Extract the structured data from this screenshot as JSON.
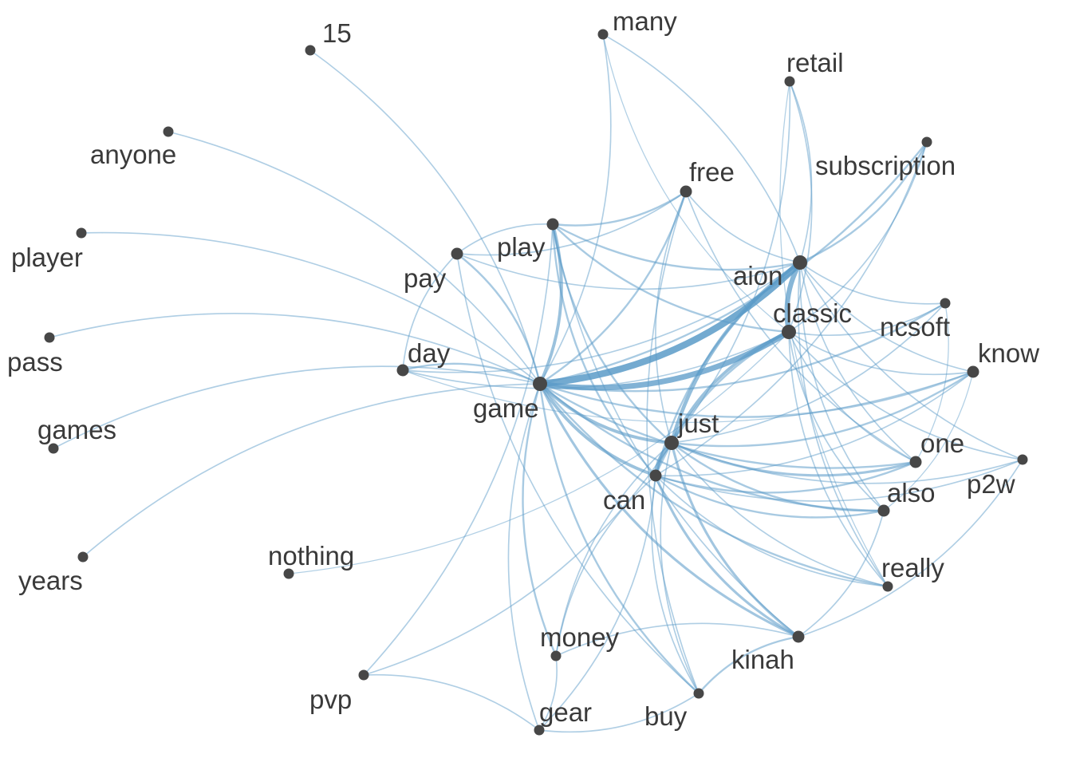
{
  "graph": {
    "type": "word-cooccurrence network",
    "edge_color": "#5b9bc8",
    "node_color": "#474747",
    "label_color": "#3a3a3a",
    "nodes": [
      {
        "id": "game",
        "label": "game",
        "size": "large"
      },
      {
        "id": "aion",
        "label": "aion",
        "size": "large"
      },
      {
        "id": "classic",
        "label": "classic",
        "size": "large"
      },
      {
        "id": "just",
        "label": "just",
        "size": "large"
      },
      {
        "id": "can",
        "label": "can",
        "size": "medium"
      },
      {
        "id": "play",
        "label": "play",
        "size": "medium"
      },
      {
        "id": "day",
        "label": "day",
        "size": "medium"
      },
      {
        "id": "pay",
        "label": "pay",
        "size": "medium"
      },
      {
        "id": "free",
        "label": "free",
        "size": "medium"
      },
      {
        "id": "one",
        "label": "one",
        "size": "medium"
      },
      {
        "id": "also",
        "label": "also",
        "size": "medium"
      },
      {
        "id": "kinah",
        "label": "kinah",
        "size": "medium"
      },
      {
        "id": "know",
        "label": "know",
        "size": "medium"
      },
      {
        "id": "ncsoft",
        "label": "ncsoft",
        "size": "small"
      },
      {
        "id": "p2w",
        "label": "p2w",
        "size": "small"
      },
      {
        "id": "really",
        "label": "really",
        "size": "small"
      },
      {
        "id": "money",
        "label": "money",
        "size": "small"
      },
      {
        "id": "buy",
        "label": "buy",
        "size": "small"
      },
      {
        "id": "gear",
        "label": "gear",
        "size": "small"
      },
      {
        "id": "pvp",
        "label": "pvp",
        "size": "small"
      },
      {
        "id": "subscription",
        "label": "subscription",
        "size": "small"
      },
      {
        "id": "retail",
        "label": "retail",
        "size": "small"
      },
      {
        "id": "many",
        "label": "many",
        "size": "small"
      },
      {
        "id": "15",
        "label": "15",
        "size": "small"
      },
      {
        "id": "anyone",
        "label": "anyone",
        "size": "small"
      },
      {
        "id": "player",
        "label": "player",
        "size": "small"
      },
      {
        "id": "pass",
        "label": "pass",
        "size": "small"
      },
      {
        "id": "games",
        "label": "games",
        "size": "small"
      },
      {
        "id": "years",
        "label": "years",
        "size": "small"
      },
      {
        "id": "nothing",
        "label": "nothing",
        "size": "small"
      }
    ],
    "edges": [
      {
        "from": "game",
        "to": "aion",
        "weight": 10
      },
      {
        "from": "game",
        "to": "classic",
        "weight": 8
      },
      {
        "from": "aion",
        "to": "classic",
        "weight": 7
      },
      {
        "from": "just",
        "to": "can",
        "weight": 6
      },
      {
        "from": "aion",
        "to": "just",
        "weight": 5
      },
      {
        "from": "classic",
        "to": "just",
        "weight": 4
      },
      {
        "from": "game",
        "to": "just",
        "weight": 4
      },
      {
        "from": "game",
        "to": "can",
        "weight": 4
      },
      {
        "from": "game",
        "to": "play",
        "weight": 4
      },
      {
        "from": "game",
        "to": "kinah",
        "weight": 3
      },
      {
        "from": "just",
        "to": "kinah",
        "weight": 3
      },
      {
        "from": "can",
        "to": "kinah",
        "weight": 3
      },
      {
        "from": "just",
        "to": "one",
        "weight": 3
      },
      {
        "from": "just",
        "to": "also",
        "weight": 2
      },
      {
        "from": "can",
        "to": "one",
        "weight": 2
      },
      {
        "from": "can",
        "to": "also",
        "weight": 2
      },
      {
        "from": "game",
        "to": "one",
        "weight": 2
      },
      {
        "from": "game",
        "to": "also",
        "weight": 2
      },
      {
        "from": "game",
        "to": "free",
        "weight": 2
      },
      {
        "from": "game",
        "to": "day",
        "weight": 2
      },
      {
        "from": "game",
        "to": "pay",
        "weight": 2
      },
      {
        "from": "game",
        "to": "money",
        "weight": 2
      },
      {
        "from": "game",
        "to": "gear",
        "weight": 1
      },
      {
        "from": "game",
        "to": "buy",
        "weight": 2
      },
      {
        "from": "game",
        "to": "really",
        "weight": 2
      },
      {
        "from": "game",
        "to": "know",
        "weight": 2
      },
      {
        "from": "game",
        "to": "ncsoft",
        "weight": 2
      },
      {
        "from": "game",
        "to": "subscription",
        "weight": 2
      },
      {
        "from": "game",
        "to": "many",
        "weight": 1
      },
      {
        "from": "game",
        "to": "15",
        "weight": 1
      },
      {
        "from": "game",
        "to": "anyone",
        "weight": 1
      },
      {
        "from": "game",
        "to": "player",
        "weight": 1
      },
      {
        "from": "game",
        "to": "pass",
        "weight": 1
      },
      {
        "from": "game",
        "to": "games",
        "weight": 1
      },
      {
        "from": "game",
        "to": "years",
        "weight": 1
      },
      {
        "from": "play",
        "to": "aion",
        "weight": 2
      },
      {
        "from": "play",
        "to": "free",
        "weight": 2
      },
      {
        "from": "play",
        "to": "classic",
        "weight": 2
      },
      {
        "from": "play",
        "to": "just",
        "weight": 2
      },
      {
        "from": "play",
        "to": "pay",
        "weight": 1
      },
      {
        "from": "play",
        "to": "can",
        "weight": 2
      },
      {
        "from": "play",
        "to": "kinah",
        "weight": 1
      },
      {
        "from": "pay",
        "to": "aion",
        "weight": 1
      },
      {
        "from": "pay",
        "to": "free",
        "weight": 1
      },
      {
        "from": "pay",
        "to": "day",
        "weight": 1
      },
      {
        "from": "pay",
        "to": "buy",
        "weight": 1
      },
      {
        "from": "day",
        "to": "classic",
        "weight": 1
      },
      {
        "from": "day",
        "to": "aion",
        "weight": 1
      },
      {
        "from": "free",
        "to": "aion",
        "weight": 1
      },
      {
        "from": "free",
        "to": "buy",
        "weight": 1
      },
      {
        "from": "free",
        "to": "just",
        "weight": 1
      },
      {
        "from": "free",
        "to": "one",
        "weight": 1
      },
      {
        "from": "aion",
        "to": "subscription",
        "weight": 2
      },
      {
        "from": "classic",
        "to": "subscription",
        "weight": 1
      },
      {
        "from": "aion",
        "to": "retail",
        "weight": 1
      },
      {
        "from": "classic",
        "to": "retail",
        "weight": 1
      },
      {
        "from": "aion",
        "to": "ncsoft",
        "weight": 1
      },
      {
        "from": "aion",
        "to": "know",
        "weight": 1
      },
      {
        "from": "aion",
        "to": "one",
        "weight": 1
      },
      {
        "from": "aion",
        "to": "also",
        "weight": 1
      },
      {
        "from": "aion",
        "to": "really",
        "weight": 1
      },
      {
        "from": "aion",
        "to": "p2w",
        "weight": 1
      },
      {
        "from": "aion",
        "to": "can",
        "weight": 2
      },
      {
        "from": "aion",
        "to": "many",
        "weight": 1
      },
      {
        "from": "classic",
        "to": "ncsoft",
        "weight": 1
      },
      {
        "from": "classic",
        "to": "know",
        "weight": 1
      },
      {
        "from": "classic",
        "to": "p2w",
        "weight": 1
      },
      {
        "from": "classic",
        "to": "can",
        "weight": 2
      },
      {
        "from": "classic",
        "to": "one",
        "weight": 1
      },
      {
        "from": "classic",
        "to": "also",
        "weight": 1
      },
      {
        "from": "classic",
        "to": "really",
        "weight": 1
      },
      {
        "from": "just",
        "to": "know",
        "weight": 2
      },
      {
        "from": "just",
        "to": "ncsoft",
        "weight": 1
      },
      {
        "from": "just",
        "to": "p2w",
        "weight": 1
      },
      {
        "from": "just",
        "to": "really",
        "weight": 1
      },
      {
        "from": "just",
        "to": "retail",
        "weight": 1
      },
      {
        "from": "can",
        "to": "know",
        "weight": 1
      },
      {
        "from": "can",
        "to": "p2w",
        "weight": 1
      },
      {
        "from": "can",
        "to": "really",
        "weight": 1
      },
      {
        "from": "can",
        "to": "money",
        "weight": 1
      },
      {
        "from": "can",
        "to": "buy",
        "weight": 1
      },
      {
        "from": "can",
        "to": "subscription",
        "weight": 1
      },
      {
        "from": "just",
        "to": "money",
        "weight": 1
      },
      {
        "from": "just",
        "to": "buy",
        "weight": 1
      },
      {
        "from": "kinah",
        "to": "money",
        "weight": 1
      },
      {
        "from": "kinah",
        "to": "buy",
        "weight": 2
      },
      {
        "from": "kinah",
        "to": "also",
        "weight": 1
      },
      {
        "from": "kinah",
        "to": "p2w",
        "weight": 1
      },
      {
        "from": "gear",
        "to": "buy",
        "weight": 1
      },
      {
        "from": "gear",
        "to": "pvp",
        "weight": 1
      },
      {
        "from": "gear",
        "to": "money",
        "weight": 1
      },
      {
        "from": "gear",
        "to": "can",
        "weight": 1
      },
      {
        "from": "pvp",
        "to": "just",
        "weight": 1
      },
      {
        "from": "pvp",
        "to": "play",
        "weight": 1
      },
      {
        "from": "nothing",
        "to": "classic",
        "weight": 0.5
      },
      {
        "from": "many",
        "to": "classic",
        "weight": 0.5
      },
      {
        "from": "retail",
        "to": "really",
        "weight": 0.5
      },
      {
        "from": "day",
        "to": "know",
        "weight": 0.5
      },
      {
        "from": "one",
        "to": "ncsoft",
        "weight": 0.5
      },
      {
        "from": "also",
        "to": "know",
        "weight": 0.5
      }
    ]
  }
}
